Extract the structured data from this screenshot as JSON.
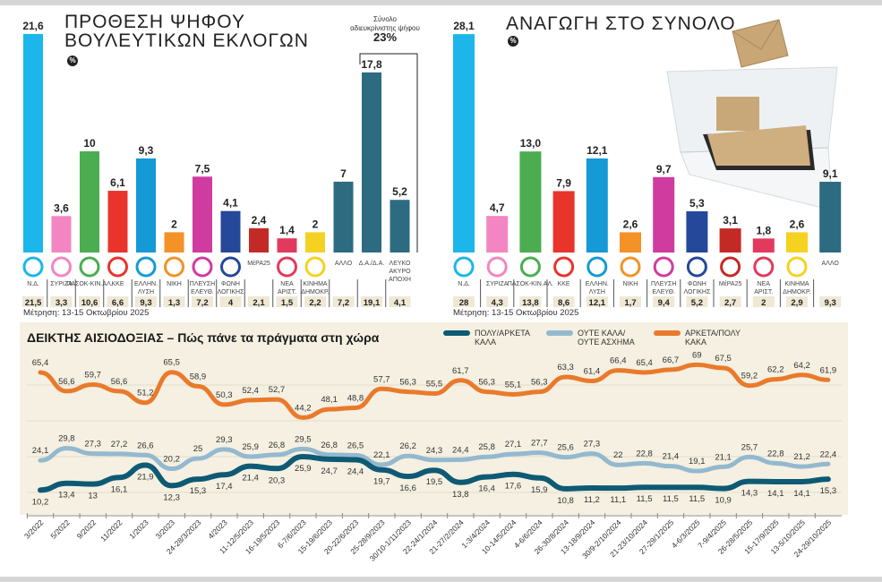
{
  "left_chart": {
    "title_line1": "ΠΡΟΘΕΣΗ ΨΗΦΟΥ",
    "title_line2": "ΒΟΥΛΕΥΤΙΚΩΝ ΕΚΛΟΓΩΝ",
    "unit": "%",
    "undecided_label_1": "Σύνολο",
    "undecided_label_2": "αδιευκρίνιστης ψήφου",
    "undecided_value": "23%",
    "source": "Μέτρηση: 13-15 Οκτωβρίου 2025"
  },
  "right_chart": {
    "title": "ΑΝΑΓΩΓΗ ΣΤΟ ΣΥΝΟΛΟ",
    "unit": "%",
    "source": "Μέτρηση: 13-15 Οκτωβρίου 2025"
  },
  "line_chart": {
    "title": "ΔΕΙΚΤΗΣ ΑΙΣΙΟΔΟΞΙΑΣ – Πώς πάνε τα πράγματα στη χώρα"
  },
  "chart_data": [
    {
      "type": "bar",
      "title": "ΠΡΟΘΕΣΗ ΨΗΦΟΥ ΒΟΥΛΕΥΤΙΚΩΝ ΕΚΛΟΓΩΝ",
      "unit": "%",
      "categories": [
        "Ν.Δ.",
        "ΣΥΡΙΖΑ",
        "ΠΑΣΟΚ-ΚΙΝ.ΑΛ.",
        "ΚΚΕ",
        "ΕΛΛΗΝ. ΛΥΣΗ",
        "ΝΙΚΗ",
        "ΠΛΕΥΣΗ ΕΛΕΥΘ.",
        "ΦΩΝΗ ΛΟΓΙΚΗΣ",
        "ΜέΡΑ25",
        "ΝΕΑ ΑΡΙΣΤ.",
        "ΚΙΝΗΜΑ ΔΗΜΟΚΡ.",
        "ΑΛΛΟ",
        "Δ.Α./Δ.Α.",
        "ΛΕΥΚΟ ΑΚΥΡΟ ΑΠΟΧΗ"
      ],
      "labels": [
        "21,6",
        "3,6",
        "10",
        "6,1",
        "9,3",
        "2",
        "7,5",
        "4,1",
        "2,4",
        "1,4",
        "2",
        "7",
        "17,8",
        "5,2"
      ],
      "values": [
        21.6,
        3.6,
        10,
        6.1,
        9.3,
        2,
        7.5,
        4.1,
        2.4,
        1.4,
        2,
        7,
        17.8,
        5.2
      ],
      "previous_labels": [
        "21,5",
        "3,3",
        "10,6",
        "6,6",
        "9,3",
        "1,3",
        "7,2",
        "4",
        "2,1",
        "1,5",
        "2,2",
        "7,2",
        "19,1",
        "4,1"
      ],
      "colors": [
        "#1cb6ea",
        "#f285c2",
        "#4bad50",
        "#e8342b",
        "#159ad6",
        "#f39227",
        "#d03b9f",
        "#26489b",
        "#c42a25",
        "#e23a5c",
        "#f5d221",
        "#2d6b80",
        "#2d6b80",
        "#2d6b80"
      ],
      "has_logo": [
        true,
        true,
        true,
        true,
        true,
        true,
        true,
        true,
        false,
        true,
        true,
        false,
        false,
        false
      ]
    },
    {
      "type": "bar",
      "title": "ΑΝΑΓΩΓΗ ΣΤΟ ΣΥΝΟΛΟ",
      "unit": "%",
      "categories": [
        "Ν.Δ.",
        "ΣΥΡΙΖΑ",
        "ΠΑΣΟΚ-ΚΙΝ.ΑΛ.",
        "ΚΚΕ",
        "ΕΛΛΗΝ. ΛΥΣΗ",
        "ΝΙΚΗ",
        "ΠΛΕΥΣΗ ΕΛΕΥΘ.",
        "ΦΩΝΗ ΛΟΓΙΚΗΣ",
        "ΜέΡΑ25",
        "ΝΕΑ ΑΡΙΣΤ.",
        "ΚΙΝΗΜΑ ΔΗΜΟΚΡ.",
        "ΑΛΛΟ"
      ],
      "labels": [
        "28,1",
        "4,7",
        "13,0",
        "7,9",
        "12,1",
        "2,6",
        "9,7",
        "5,3",
        "3,1",
        "1,8",
        "2,6",
        "9,1"
      ],
      "values": [
        28.1,
        4.7,
        13.0,
        7.9,
        12.1,
        2.6,
        9.7,
        5.3,
        3.1,
        1.8,
        2.6,
        9.1
      ],
      "previous_labels": [
        "28",
        "4,3",
        "13,8",
        "8,6",
        "12,1",
        "1,7",
        "9,4",
        "5,2",
        "2,7",
        "2",
        "2,9",
        "9,3"
      ],
      "colors": [
        "#1cb6ea",
        "#f285c2",
        "#4bad50",
        "#e8342b",
        "#159ad6",
        "#f39227",
        "#d03b9f",
        "#26489b",
        "#c42a25",
        "#e23a5c",
        "#f5d221",
        "#2d6b80"
      ],
      "has_logo": [
        true,
        true,
        true,
        true,
        true,
        true,
        true,
        true,
        true,
        true,
        true,
        false
      ]
    },
    {
      "type": "line",
      "title": "ΔΕΙΚΤΗΣ ΑΙΣΙΟΔΟΞΙΑΣ – Πώς πάνε τα πράγματα στη χώρα",
      "legend": "top-right",
      "grid": true,
      "x": [
        "3/2022",
        "5/2022",
        "9/2022",
        "11/2022",
        "1/2023",
        "3/2023",
        "24-28/3/2023",
        "4/2023",
        "11-12/5/2023",
        "16-19/5/2023",
        "6-7/6/2023",
        "15-19/6/2023",
        "20-22/6/2023",
        "25-28/9/2023",
        "30/10-1/11/2023",
        "22-24/1/2024",
        "21-27/2/2024",
        "1-3/4/2024",
        "10-14/5/2024",
        "4-6/6/2024",
        "26-30/8/2024",
        "13-18/9/2024",
        "30/9-2/10/2024",
        "21-23/10/2024",
        "27-29/1/2025",
        "4-6/3/2025",
        "7-9/4/2025",
        "26-28/5/2025",
        "15-17/9/2025",
        "13-5/10/2025",
        "24-29/10/2025"
      ],
      "series": [
        {
          "name": "ΠΟΛΥ/ΑΡΚΕΤΑ ΚΑΛΑ",
          "color": "#0e5a74",
          "values": [
            10.2,
            13.4,
            13,
            16.1,
            21.9,
            12.3,
            15.3,
            17.4,
            21.4,
            20.3,
            25.9,
            24.7,
            24.4,
            19.7,
            16.6,
            19.5,
            13.8,
            16.4,
            17.6,
            15.9,
            10.8,
            11.2,
            11.1,
            11.5,
            11.5,
            11.5,
            10.9,
            14.3,
            14.1,
            14.1,
            15.3
          ]
        },
        {
          "name": "ΟΥΤΕ ΚΑΛΑ/ ΟΥΤΕ ΑΣΧΗΜΑ",
          "color": "#93b9cf",
          "values": [
            24.1,
            29.8,
            27.3,
            27.2,
            26.6,
            20.2,
            25,
            29.3,
            25.9,
            26.8,
            29.5,
            26.8,
            26.5,
            22.1,
            26.2,
            24.3,
            24.4,
            25.8,
            27.1,
            27.7,
            25.6,
            27.3,
            22,
            22.8,
            21.4,
            19.1,
            21.1,
            25.7,
            22.8,
            21.2,
            22.4
          ]
        },
        {
          "name": "ΑΡΚΕΤΑ/ΠΟΛΥ ΚΑΚΑ",
          "color": "#e97a2c",
          "values": [
            65.4,
            56.6,
            59.7,
            56.6,
            51.2,
            65.5,
            58.9,
            50.3,
            52.4,
            52.7,
            44.2,
            48.1,
            48.8,
            57.7,
            56.3,
            55.5,
            61.7,
            56.3,
            55.1,
            56.3,
            63.3,
            61.4,
            66.4,
            65.4,
            66.7,
            69,
            67.5,
            59.2,
            62.2,
            64.2,
            61.9
          ]
        }
      ]
    }
  ]
}
